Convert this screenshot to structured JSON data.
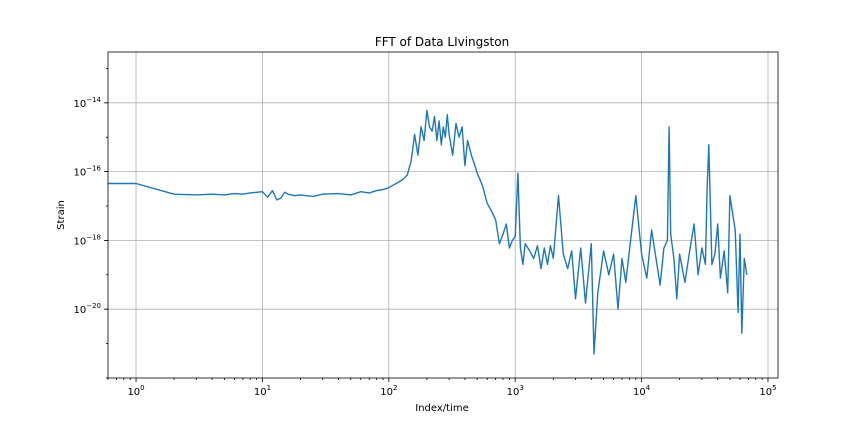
{
  "chart_data": {
    "type": "line",
    "title": "FFT of Data LIvingston",
    "xlabel": "Index/time",
    "ylabel": "Strain",
    "xscale": "log",
    "yscale": "log",
    "xlim": [
      0.6,
      120000
    ],
    "ylim": [
      1e-22,
      3e-13
    ],
    "grid": true,
    "color": "#1f77b4",
    "x_ticks": [
      {
        "value": 1,
        "label": "10^0"
      },
      {
        "value": 10,
        "label": "10^1"
      },
      {
        "value": 100,
        "label": "10^2"
      },
      {
        "value": 1000,
        "label": "10^3"
      },
      {
        "value": 10000,
        "label": "10^4"
      },
      {
        "value": 100000,
        "label": "10^5"
      }
    ],
    "y_ticks": [
      {
        "value": 1e-14,
        "label": "10^-14"
      },
      {
        "value": 1e-16,
        "label": "10^-16"
      },
      {
        "value": 1e-18,
        "label": "10^-18"
      },
      {
        "value": 1e-20,
        "label": "10^-20"
      }
    ],
    "series": [
      {
        "x": [
          0.6,
          1,
          2,
          3,
          4,
          5,
          6,
          7,
          8,
          9,
          10,
          11,
          12,
          13,
          14,
          15,
          16,
          18,
          20,
          25,
          30,
          40,
          50,
          60,
          70,
          80,
          90,
          100,
          110,
          120,
          130,
          140,
          150,
          160,
          170,
          180,
          190,
          200,
          210,
          220,
          230,
          240,
          250,
          260,
          270,
          280,
          290,
          300,
          320,
          340,
          360,
          380,
          400,
          420,
          450,
          480,
          500,
          550,
          600,
          650,
          700,
          750,
          800,
          850,
          900,
          950,
          1000,
          1050,
          1100,
          1150,
          1200,
          1300,
          1400,
          1500,
          1600,
          1700,
          1800,
          1900,
          2000,
          2200,
          2400,
          2600,
          2800,
          3000,
          3300,
          3600,
          4000,
          4200,
          4500,
          5000,
          5500,
          6000,
          6500,
          7000,
          7500,
          8000,
          9000,
          10000,
          11000,
          12000,
          13000,
          14000,
          15000,
          16000,
          16500,
          17000,
          18000,
          19000,
          20000,
          22000,
          24000,
          26000,
          28000,
          30000,
          32000,
          33000,
          34000,
          36000,
          38000,
          40000,
          42000,
          45000,
          48000,
          50000,
          55000,
          58000,
          60000,
          62000,
          65000,
          68000
        ],
        "y": [
          4.5e-17,
          4.5e-17,
          2.2e-17,
          2.1e-17,
          2.2e-17,
          2.1e-17,
          2.3e-17,
          2.2e-17,
          2.4e-17,
          2.5e-17,
          2.6e-17,
          1.8e-17,
          2.8e-17,
          1.5e-17,
          1.7e-17,
          2.5e-17,
          2.2e-17,
          2e-17,
          2.1e-17,
          1.9e-17,
          2.2e-17,
          2.3e-17,
          2.1e-17,
          2.6e-17,
          2.4e-17,
          2.8e-17,
          3e-17,
          3.4e-17,
          4.2e-17,
          5e-17,
          6e-17,
          8e-17,
          2e-16,
          1.2e-15,
          3e-16,
          2e-15,
          8e-16,
          6e-15,
          2e-15,
          1.5e-15,
          4e-15,
          8e-16,
          3e-15,
          6e-16,
          2e-15,
          1e-15,
          4.5e-15,
          1.2e-15,
          3e-16,
          2.5e-15,
          1e-15,
          2e-15,
          1.5e-16,
          8e-16,
          3e-16,
          1.5e-16,
          9e-17,
          4e-17,
          1.2e-17,
          7e-18,
          4e-18,
          8e-19,
          1.5e-18,
          3e-18,
          6e-19,
          1e-18,
          1.3e-18,
          9e-17,
          6e-19,
          2e-19,
          8e-19,
          5e-19,
          3e-19,
          7e-19,
          1.5e-19,
          6e-19,
          2e-19,
          7e-19,
          3e-19,
          2e-17,
          4e-19,
          1.5e-19,
          5e-19,
          2e-20,
          6e-19,
          1.5e-20,
          8e-19,
          5e-22,
          3e-20,
          5e-19,
          1e-19,
          4e-19,
          1e-20,
          3e-19,
          6e-20,
          5e-19,
          2e-17,
          4e-19,
          8e-20,
          2e-18,
          3e-19,
          5e-20,
          6e-19,
          1e-18,
          2e-15,
          1.5e-18,
          3e-19,
          2e-20,
          4e-19,
          6e-20,
          5e-19,
          3e-18,
          1e-19,
          6e-19,
          2e-19,
          3e-17,
          6e-16,
          2e-19,
          4e-19,
          3e-18,
          8e-20,
          5e-19,
          3e-20,
          2e-17,
          2e-18,
          8e-21,
          1.5e-18,
          2e-21,
          3e-19,
          1e-19
        ]
      }
    ]
  }
}
